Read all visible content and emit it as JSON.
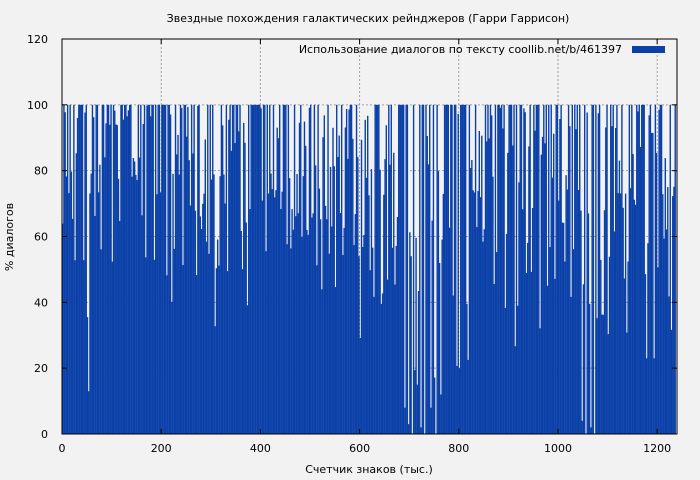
{
  "chart_data": {
    "type": "bar",
    "title": "Звездные похождения галактических рейнджеров (Гарри Гаррисон)",
    "xlabel": "Счетчик знаков (тыс.)",
    "ylabel": "% диалогов",
    "xlim": [
      0,
      1240
    ],
    "ylim": [
      0,
      120
    ],
    "xticks": [
      0,
      200,
      400,
      600,
      800,
      1000,
      1200
    ],
    "yticks": [
      0,
      20,
      40,
      60,
      80,
      100,
      120
    ],
    "grid": true,
    "legend_position": "top-right",
    "series": [
      {
        "name": "Использование диалогов по тексту  coollib.net/b/461397",
        "color": "#0a40a8",
        "bin_width": 2.5,
        "x_start": 0,
        "x_end": 1236,
        "low_segments": [
          {
            "from": 0,
            "to": 20,
            "min": 55,
            "max": 100
          },
          {
            "from": 20,
            "to": 60,
            "min": 30,
            "max": 100
          },
          {
            "from": 60,
            "to": 160,
            "min": 45,
            "max": 100
          },
          {
            "from": 160,
            "to": 200,
            "min": 38,
            "max": 100
          },
          {
            "from": 200,
            "to": 400,
            "min": 30,
            "max": 100
          },
          {
            "from": 400,
            "to": 600,
            "min": 30,
            "max": 100
          },
          {
            "from": 600,
            "to": 700,
            "min": 20,
            "max": 100
          },
          {
            "from": 700,
            "to": 760,
            "min": 0,
            "max": 100
          },
          {
            "from": 760,
            "to": 900,
            "min": 15,
            "max": 100
          },
          {
            "from": 900,
            "to": 1040,
            "min": 20,
            "max": 100
          },
          {
            "from": 1040,
            "to": 1080,
            "min": 0,
            "max": 100
          },
          {
            "from": 1080,
            "to": 1236,
            "min": 15,
            "max": 100
          }
        ],
        "dips": [
          {
            "x": 52,
            "value": 13
          },
          {
            "x": 690,
            "value": 8
          },
          {
            "x": 697,
            "value": 3
          },
          {
            "x": 705,
            "value": 0
          },
          {
            "x": 716,
            "value": 15
          },
          {
            "x": 722,
            "value": 2
          },
          {
            "x": 730,
            "value": 0
          },
          {
            "x": 742,
            "value": 8
          },
          {
            "x": 752,
            "value": 0
          },
          {
            "x": 762,
            "value": 12
          },
          {
            "x": 1048,
            "value": 4
          },
          {
            "x": 1055,
            "value": 0
          },
          {
            "x": 1064,
            "value": 2
          },
          {
            "x": 1072,
            "value": 0
          },
          {
            "x": 1178,
            "value": 23
          },
          {
            "x": 1192,
            "value": 23
          }
        ]
      }
    ]
  }
}
